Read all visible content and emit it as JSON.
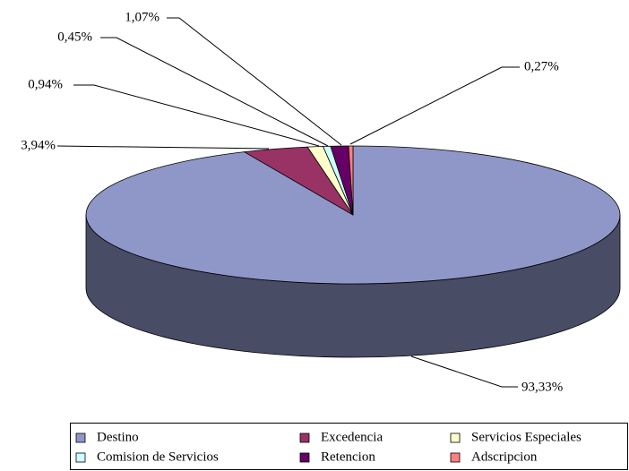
{
  "chart_data": {
    "type": "pie3d",
    "categories": [
      "Destino",
      "Excedencia",
      "Servicios Especiales",
      "Comision de Servicios",
      "Retencion",
      "Adscripcion"
    ],
    "values": [
      93.33,
      3.94,
      0.94,
      0.45,
      1.07,
      0.27
    ],
    "value_labels": [
      "93,33%",
      "3,94%",
      "0,94%",
      "0,45%",
      "1,07%",
      "0,27%"
    ],
    "colors": [
      "#8f97c9",
      "#993366",
      "#ffffcc",
      "#ccffff",
      "#660066",
      "#ff8080"
    ],
    "legend": "bottom"
  }
}
